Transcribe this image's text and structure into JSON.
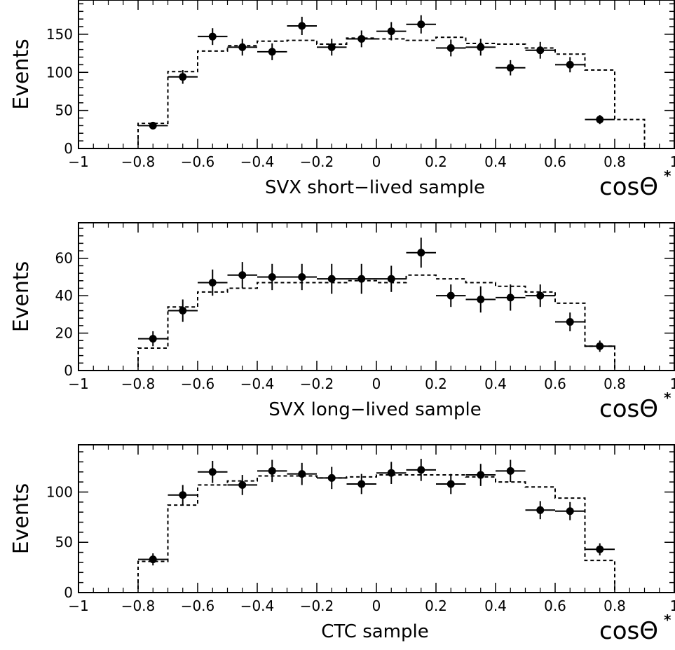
{
  "chart_data": [
    {
      "type": "histogram",
      "xlabel": "SVX short−lived sample",
      "axis_var": "cosΘ",
      "axis_var_sup": "*",
      "ylabel": "Events",
      "xlim": [
        -1,
        1
      ],
      "ylim": [
        0,
        195
      ],
      "xticks": [
        -1,
        -0.8,
        -0.6,
        -0.4,
        -0.2,
        0,
        0.2,
        0.4,
        0.6,
        0.8,
        1
      ],
      "xtick_labels": [
        "−1",
        "−0.8",
        "−0.6",
        "−0.4",
        "−0.2",
        "0",
        "0.2",
        "0.4",
        "0.6",
        "0.8",
        "1"
      ],
      "yticks": [
        0,
        50,
        100,
        150
      ],
      "ytick_labels": [
        "0",
        "50",
        "100",
        "150"
      ],
      "bin_edges": [
        -1,
        -0.9,
        -0.8,
        -0.7,
        -0.6,
        -0.5,
        -0.4,
        -0.3,
        -0.2,
        -0.1,
        0,
        0.1,
        0.2,
        0.3,
        0.4,
        0.5,
        0.6,
        0.7,
        0.8,
        0.9,
        1
      ],
      "histogram": [
        0,
        0,
        33,
        101,
        128,
        135,
        141,
        142,
        137,
        145,
        144,
        142,
        146,
        138,
        137,
        132,
        124,
        103,
        38,
        0
      ],
      "points": [
        {
          "x": -0.75,
          "y": 30,
          "err": 4
        },
        {
          "x": -0.65,
          "y": 94,
          "err": 9
        },
        {
          "x": -0.55,
          "y": 147,
          "err": 11
        },
        {
          "x": -0.45,
          "y": 133,
          "err": 11
        },
        {
          "x": -0.35,
          "y": 127,
          "err": 11
        },
        {
          "x": -0.25,
          "y": 161,
          "err": 12
        },
        {
          "x": -0.15,
          "y": 133,
          "err": 11
        },
        {
          "x": -0.05,
          "y": 144,
          "err": 11
        },
        {
          "x": 0.05,
          "y": 154,
          "err": 12
        },
        {
          "x": 0.15,
          "y": 163,
          "err": 12
        },
        {
          "x": 0.25,
          "y": 132,
          "err": 11
        },
        {
          "x": 0.35,
          "y": 133,
          "err": 11
        },
        {
          "x": 0.45,
          "y": 106,
          "err": 10
        },
        {
          "x": 0.55,
          "y": 129,
          "err": 11
        },
        {
          "x": 0.65,
          "y": 110,
          "err": 10
        },
        {
          "x": 0.75,
          "y": 38,
          "err": 6
        }
      ]
    },
    {
      "type": "histogram",
      "xlabel": "SVX long−lived sample",
      "axis_var": "cosΘ",
      "axis_var_sup": "*",
      "ylabel": "Events",
      "xlim": [
        -1,
        1
      ],
      "ylim": [
        0,
        79
      ],
      "xticks": [
        -1,
        -0.8,
        -0.6,
        -0.4,
        -0.2,
        0,
        0.2,
        0.4,
        0.6,
        0.8,
        1
      ],
      "xtick_labels": [
        "−1",
        "−0.8",
        "−0.6",
        "−0.4",
        "−0.2",
        "0",
        "0.2",
        "0.4",
        "0.6",
        "0.8",
        "1"
      ],
      "yticks": [
        0,
        20,
        40,
        60
      ],
      "ytick_labels": [
        "0",
        "20",
        "40",
        "60"
      ],
      "bin_edges": [
        -1,
        -0.9,
        -0.8,
        -0.7,
        -0.6,
        -0.5,
        -0.4,
        -0.3,
        -0.2,
        -0.1,
        0,
        0.1,
        0.2,
        0.3,
        0.4,
        0.5,
        0.6,
        0.7,
        0.8,
        0.9,
        1
      ],
      "histogram": [
        0,
        0,
        12,
        34,
        42,
        44,
        47,
        47,
        47,
        48,
        47,
        51,
        49,
        47,
        45,
        42,
        36,
        13,
        0,
        0
      ],
      "points": [
        {
          "x": -0.75,
          "y": 17,
          "err": 4
        },
        {
          "x": -0.65,
          "y": 32,
          "err": 6
        },
        {
          "x": -0.55,
          "y": 47,
          "err": 7
        },
        {
          "x": -0.45,
          "y": 51,
          "err": 7
        },
        {
          "x": -0.35,
          "y": 50,
          "err": 7
        },
        {
          "x": -0.25,
          "y": 50,
          "err": 7
        },
        {
          "x": -0.15,
          "y": 49,
          "err": 8
        },
        {
          "x": -0.05,
          "y": 49,
          "err": 8
        },
        {
          "x": 0.05,
          "y": 49,
          "err": 7
        },
        {
          "x": 0.15,
          "y": 63,
          "err": 8
        },
        {
          "x": 0.25,
          "y": 40,
          "err": 6
        },
        {
          "x": 0.35,
          "y": 38,
          "err": 7
        },
        {
          "x": 0.45,
          "y": 39,
          "err": 7
        },
        {
          "x": 0.55,
          "y": 40,
          "err": 6
        },
        {
          "x": 0.65,
          "y": 26,
          "err": 5
        },
        {
          "x": 0.75,
          "y": 13,
          "err": 3
        }
      ]
    },
    {
      "type": "histogram",
      "xlabel": "CTC sample",
      "axis_var": "cosΘ",
      "axis_var_sup": "*",
      "ylabel": "Events",
      "xlim": [
        -1,
        1
      ],
      "ylim": [
        0,
        147
      ],
      "xticks": [
        -1,
        -0.8,
        -0.6,
        -0.4,
        -0.2,
        0,
        0.2,
        0.4,
        0.6,
        0.8,
        1
      ],
      "xtick_labels": [
        "−1",
        "−0.8",
        "−0.6",
        "−0.4",
        "−0.2",
        "0",
        "0.2",
        "0.4",
        "0.6",
        "0.8",
        "1"
      ],
      "yticks": [
        0,
        50,
        100
      ],
      "ytick_labels": [
        "0",
        "50",
        "100"
      ],
      "bin_edges": [
        -1,
        -0.9,
        -0.8,
        -0.7,
        -0.6,
        -0.5,
        -0.4,
        -0.3,
        -0.2,
        -0.1,
        0,
        0.1,
        0.2,
        0.3,
        0.4,
        0.5,
        0.6,
        0.7,
        0.8,
        0.9,
        1
      ],
      "histogram": [
        0,
        0,
        31,
        87,
        107,
        111,
        116,
        116,
        114,
        115,
        117,
        117,
        117,
        115,
        110,
        105,
        94,
        32,
        0,
        0
      ],
      "points": [
        {
          "x": -0.75,
          "y": 33,
          "err": 6
        },
        {
          "x": -0.65,
          "y": 97,
          "err": 10
        },
        {
          "x": -0.55,
          "y": 120,
          "err": 11
        },
        {
          "x": -0.45,
          "y": 107,
          "err": 10
        },
        {
          "x": -0.35,
          "y": 121,
          "err": 11
        },
        {
          "x": -0.25,
          "y": 118,
          "err": 11
        },
        {
          "x": -0.15,
          "y": 114,
          "err": 11
        },
        {
          "x": -0.05,
          "y": 108,
          "err": 10
        },
        {
          "x": 0.05,
          "y": 119,
          "err": 11
        },
        {
          "x": 0.15,
          "y": 122,
          "err": 11
        },
        {
          "x": 0.25,
          "y": 108,
          "err": 10
        },
        {
          "x": 0.35,
          "y": 117,
          "err": 11
        },
        {
          "x": 0.45,
          "y": 121,
          "err": 11
        },
        {
          "x": 0.55,
          "y": 82,
          "err": 9
        },
        {
          "x": 0.65,
          "y": 81,
          "err": 9
        },
        {
          "x": 0.75,
          "y": 43,
          "err": 6
        }
      ]
    }
  ]
}
